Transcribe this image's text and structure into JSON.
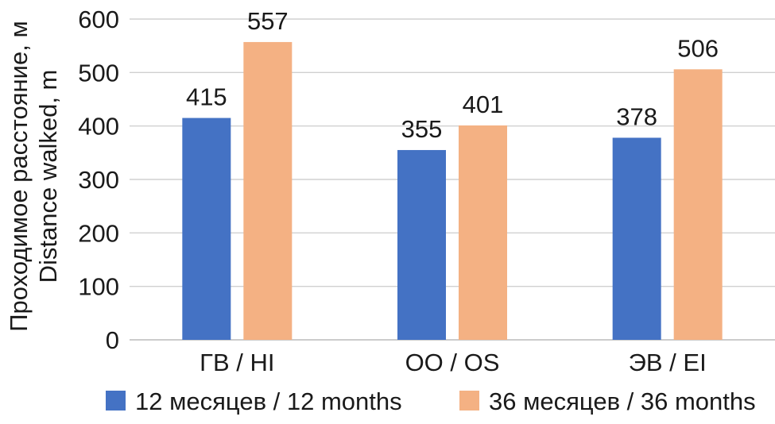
{
  "chart_data": {
    "type": "bar",
    "categories": [
      "ГВ / HI",
      "ОО / OS",
      "ЭВ / EI"
    ],
    "series": [
      {
        "name": "12 месяцев / 12 months",
        "values": [
          415,
          355,
          378
        ],
        "color": "#4472c4"
      },
      {
        "name": "36 месяцев / 36 months",
        "values": [
          557,
          401,
          506
        ],
        "color": "#f4b183"
      }
    ],
    "ylabel_lines": [
      "Проходимое расстояние, м",
      "Distance walked, m"
    ],
    "ylim": [
      0,
      600
    ],
    "yticks": [
      0,
      100,
      200,
      300,
      400,
      500,
      600
    ],
    "grid": true,
    "legend_position": "bottom",
    "data_labels": true
  }
}
